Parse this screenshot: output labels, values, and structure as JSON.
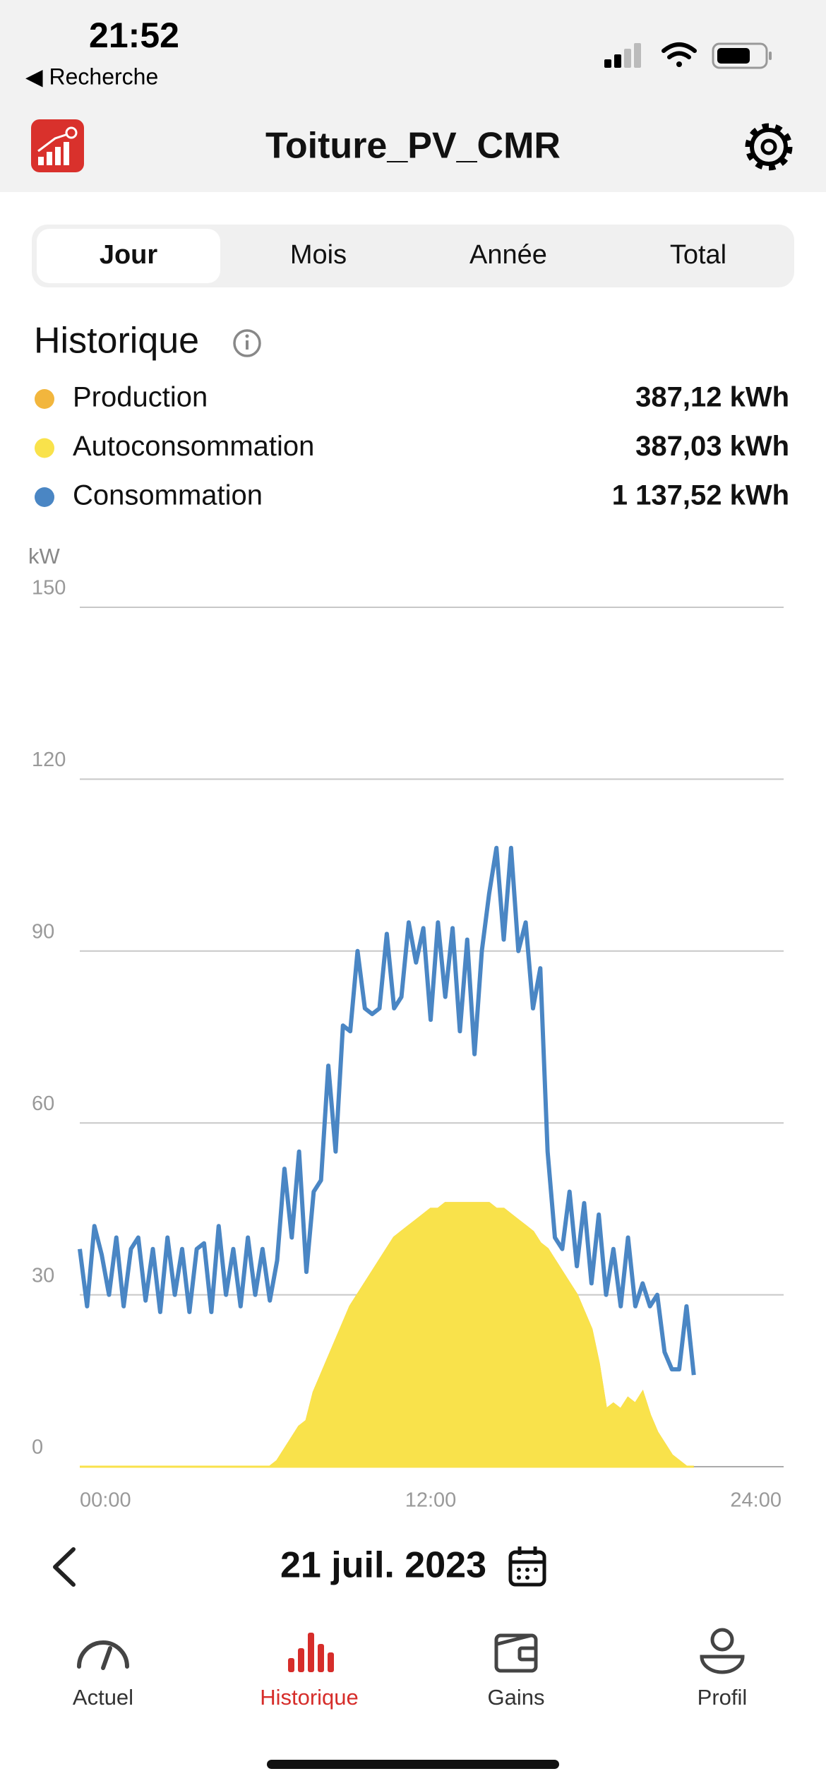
{
  "status_bar": {
    "time": "21:52",
    "back": "◀ Recherche"
  },
  "header": {
    "title": "Toiture_PV_CMR"
  },
  "period_tabs": [
    "Jour",
    "Mois",
    "Année",
    "Total"
  ],
  "section_title": "Historique",
  "chart_data": {
    "type": "line",
    "y_label": "kW",
    "xlim": [
      0,
      24
    ],
    "xticks": [
      {
        "value": 0,
        "label": "00:00"
      },
      {
        "value": 12,
        "label": "12:00"
      },
      {
        "value": 24,
        "label": "24:00"
      }
    ],
    "ylim": [
      0,
      150
    ],
    "yticks": [
      0,
      30,
      60,
      90,
      120,
      150
    ],
    "grid": true,
    "x": [
      0,
      0.25,
      0.5,
      0.75,
      1,
      1.25,
      1.5,
      1.75,
      2,
      2.25,
      2.5,
      2.75,
      3,
      3.25,
      3.5,
      3.75,
      4,
      4.25,
      4.5,
      4.75,
      5,
      5.25,
      5.5,
      5.75,
      6,
      6.25,
      6.5,
      6.75,
      7,
      7.25,
      7.5,
      7.75,
      8,
      8.25,
      8.5,
      8.75,
      9,
      9.25,
      9.5,
      9.75,
      10,
      10.25,
      10.5,
      10.75,
      11,
      11.25,
      11.5,
      11.75,
      12,
      12.25,
      12.5,
      12.75,
      13,
      13.25,
      13.5,
      13.75,
      14,
      14.25,
      14.5,
      14.75,
      15,
      15.25,
      15.5,
      15.75,
      16,
      16.25,
      16.5,
      16.75,
      17,
      17.25,
      17.5,
      17.75,
      18,
      18.25,
      18.5,
      18.75,
      19,
      19.25,
      19.5,
      19.75,
      20,
      20.25,
      20.5,
      20.75,
      21
    ],
    "series": [
      {
        "name": "Production",
        "total": "387,12 kWh",
        "color": "#f2b63d",
        "style": "area",
        "values": [
          0,
          0,
          0,
          0,
          0,
          0,
          0,
          0,
          0,
          0,
          0,
          0,
          0,
          0,
          0,
          0,
          0,
          0,
          0,
          0,
          0,
          0,
          0,
          0,
          0,
          0,
          0,
          1,
          3,
          5,
          7,
          8,
          13,
          16,
          19,
          22,
          25,
          28,
          30,
          32,
          34,
          36,
          38,
          40,
          41,
          42,
          43,
          44,
          45,
          45,
          46,
          46,
          46,
          46,
          46,
          46,
          46,
          45,
          45,
          44,
          43,
          42,
          41,
          39,
          38,
          36,
          34,
          32,
          30,
          27,
          24,
          18,
          10,
          11,
          10,
          12,
          11,
          13,
          9,
          6,
          4,
          2,
          1,
          0,
          0
        ]
      },
      {
        "name": "Autoconsommation",
        "total": "387,03 kWh",
        "color": "#f9e24b",
        "style": "area",
        "values": [
          0,
          0,
          0,
          0,
          0,
          0,
          0,
          0,
          0,
          0,
          0,
          0,
          0,
          0,
          0,
          0,
          0,
          0,
          0,
          0,
          0,
          0,
          0,
          0,
          0,
          0,
          0,
          1,
          3,
          5,
          7,
          8,
          13,
          16,
          19,
          22,
          25,
          28,
          30,
          32,
          34,
          36,
          38,
          40,
          41,
          42,
          43,
          44,
          45,
          45,
          46,
          46,
          46,
          46,
          46,
          46,
          46,
          45,
          45,
          44,
          43,
          42,
          41,
          39,
          38,
          36,
          34,
          32,
          30,
          27,
          24,
          18,
          10,
          11,
          10,
          12,
          11,
          13,
          9,
          6,
          4,
          2,
          1,
          0,
          0
        ]
      },
      {
        "name": "Consommation",
        "total": "1 137,52 kWh",
        "color": "#4a86c4",
        "style": "line",
        "values": [
          38,
          28,
          42,
          37,
          30,
          40,
          28,
          38,
          40,
          29,
          38,
          27,
          40,
          30,
          38,
          27,
          38,
          39,
          27,
          42,
          30,
          38,
          28,
          40,
          30,
          38,
          29,
          36,
          52,
          40,
          55,
          34,
          48,
          50,
          70,
          55,
          77,
          76,
          90,
          80,
          79,
          80,
          93,
          80,
          82,
          95,
          88,
          94,
          78,
          95,
          82,
          94,
          76,
          92,
          72,
          90,
          100,
          108,
          92,
          108,
          90,
          95,
          80,
          87,
          55,
          40,
          38,
          48,
          35,
          46,
          32,
          44,
          30,
          38,
          28,
          40,
          28,
          32,
          28,
          30,
          20,
          17,
          17,
          28,
          16
        ]
      }
    ]
  },
  "date": "21 juil. 2023",
  "tab_bar": [
    "Actuel",
    "Historique",
    "Gains",
    "Profil"
  ]
}
